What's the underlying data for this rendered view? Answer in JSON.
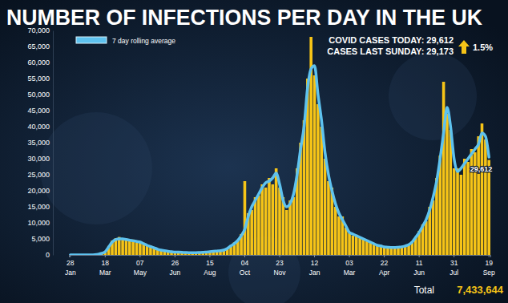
{
  "chart_data": {
    "type": "bar",
    "title": "NUMBER OF INFECTIONS PER DAY IN THE UK",
    "annotations": [
      "COVID CASES TODAY: 29,612",
      "CASES LAST SUNDAY: 29,173",
      "1.5%",
      "29,612",
      "Total",
      "7,433,644"
    ],
    "categories": [
      "28 Jan",
      null,
      null,
      null,
      null,
      null,
      null,
      null,
      null,
      null,
      "18 Mar",
      null,
      null,
      null,
      null,
      null,
      null,
      null,
      null,
      null,
      "07 May",
      null,
      null,
      null,
      null,
      null,
      null,
      null,
      null,
      null,
      "26 Jun",
      null,
      null,
      null,
      null,
      null,
      null,
      null,
      null,
      null,
      "15 Aug",
      null,
      null,
      null,
      null,
      null,
      null,
      null,
      null,
      null,
      "04 Oct",
      null,
      null,
      null,
      null,
      null,
      null,
      null,
      null,
      null,
      "23 Nov",
      null,
      null,
      null,
      null,
      null,
      null,
      null,
      null,
      null,
      "12 Jan",
      null,
      null,
      null,
      null,
      null,
      null,
      null,
      null,
      null,
      "03 Mar",
      null,
      null,
      null,
      null,
      null,
      null,
      null,
      null,
      null,
      "22 Apr",
      null,
      null,
      null,
      null,
      null,
      null,
      null,
      null,
      null,
      "11 Jun",
      null,
      null,
      null,
      null,
      null,
      null,
      null,
      null,
      null,
      "31 Jul",
      null,
      null,
      null,
      null,
      null,
      null,
      null,
      null,
      null,
      "19 Sep"
    ],
    "series": [
      {
        "type": "bar",
        "color": "#f6c417",
        "values": [
          0,
          0,
          0,
          0,
          0,
          0,
          0,
          60,
          250,
          600,
          1200,
          2800,
          4500,
          5200,
          5600,
          4700,
          5100,
          4300,
          4800,
          3900,
          4200,
          3800,
          2800,
          2900,
          2000,
          1900,
          1400,
          1400,
          1000,
          1100,
          800,
          900,
          750,
          800,
          650,
          750,
          680,
          800,
          750,
          1000,
          950,
          1200,
          1100,
          1400,
          1450,
          2200,
          2600,
          3900,
          4300,
          6500,
          23000,
          13000,
          14000,
          18000,
          18500,
          22000,
          21000,
          24000,
          22000,
          27000,
          21000,
          18000,
          14000,
          17000,
          18000,
          27000,
          35000,
          42000,
          55000,
          68000,
          56000,
          47000,
          40000,
          30000,
          23000,
          21000,
          15000,
          12000,
          12000,
          8500,
          6800,
          6000,
          6300,
          5400,
          5200,
          4300,
          4100,
          3400,
          3100,
          2500,
          2700,
          2200,
          2500,
          2100,
          2500,
          2300,
          3000,
          3300,
          4200,
          5700,
          7500,
          9500,
          10500,
          15000,
          17000,
          24000,
          31000,
          54000,
          44000,
          39000,
          27000,
          27000,
          25000,
          30000,
          29000,
          33000,
          32000,
          37000,
          41000,
          36000,
          29612
        ]
      },
      {
        "name": "7 day rolling average",
        "type": "line",
        "color": "#5ec2ef",
        "values": [
          0,
          0,
          0,
          0,
          0,
          0,
          0,
          50,
          200,
          500,
          1000,
          2500,
          4000,
          4800,
          5000,
          5000,
          4800,
          4600,
          4400,
          4200,
          4000,
          3500,
          3000,
          2600,
          2200,
          1800,
          1500,
          1300,
          1100,
          1000,
          900,
          850,
          800,
          750,
          700,
          700,
          700,
          750,
          800,
          900,
          1000,
          1100,
          1200,
          1300,
          1500,
          2000,
          2800,
          3500,
          4500,
          6000,
          8000,
          12000,
          15000,
          17000,
          19000,
          21000,
          22500,
          23000,
          24000,
          25500,
          22000,
          17000,
          15000,
          16000,
          19000,
          25000,
          33000,
          40000,
          52000,
          58000,
          59000,
          50000,
          42000,
          32000,
          25000,
          20000,
          16000,
          13000,
          11000,
          9000,
          7000,
          6500,
          6000,
          5500,
          5000,
          4500,
          4000,
          3500,
          3000,
          2800,
          2500,
          2400,
          2300,
          2300,
          2400,
          2500,
          2800,
          3200,
          4000,
          5500,
          7000,
          9000,
          11000,
          14000,
          18000,
          23000,
          30000,
          38000,
          46000,
          40000,
          30000,
          26000,
          27000,
          28500,
          30000,
          31500,
          33000,
          34500,
          38000,
          37000,
          30500
        ]
      }
    ],
    "ylim": [
      0,
      70000
    ],
    "yticks": [
      0,
      {
        "value": 5000,
        "label": "5,000"
      },
      {
        "value": 10000,
        "label": "10,000"
      },
      {
        "value": 15000,
        "label": "15,000"
      },
      {
        "value": 20000,
        "label": "20,000"
      },
      {
        "value": 25000,
        "label": "25,000"
      },
      {
        "value": 30000,
        "label": "30,000"
      },
      {
        "value": 35000,
        "label": "35,000"
      },
      {
        "value": 40000,
        "label": "40,000"
      },
      {
        "value": 45000,
        "label": "45,000"
      },
      {
        "value": 50000,
        "label": "50,000"
      },
      {
        "value": 55000,
        "label": "55,000"
      },
      {
        "value": 60000,
        "label": "60,000"
      },
      {
        "value": 65000,
        "label": "65,000"
      },
      {
        "value": 70000,
        "label": "70,000"
      }
    ],
    "grid": false
  }
}
